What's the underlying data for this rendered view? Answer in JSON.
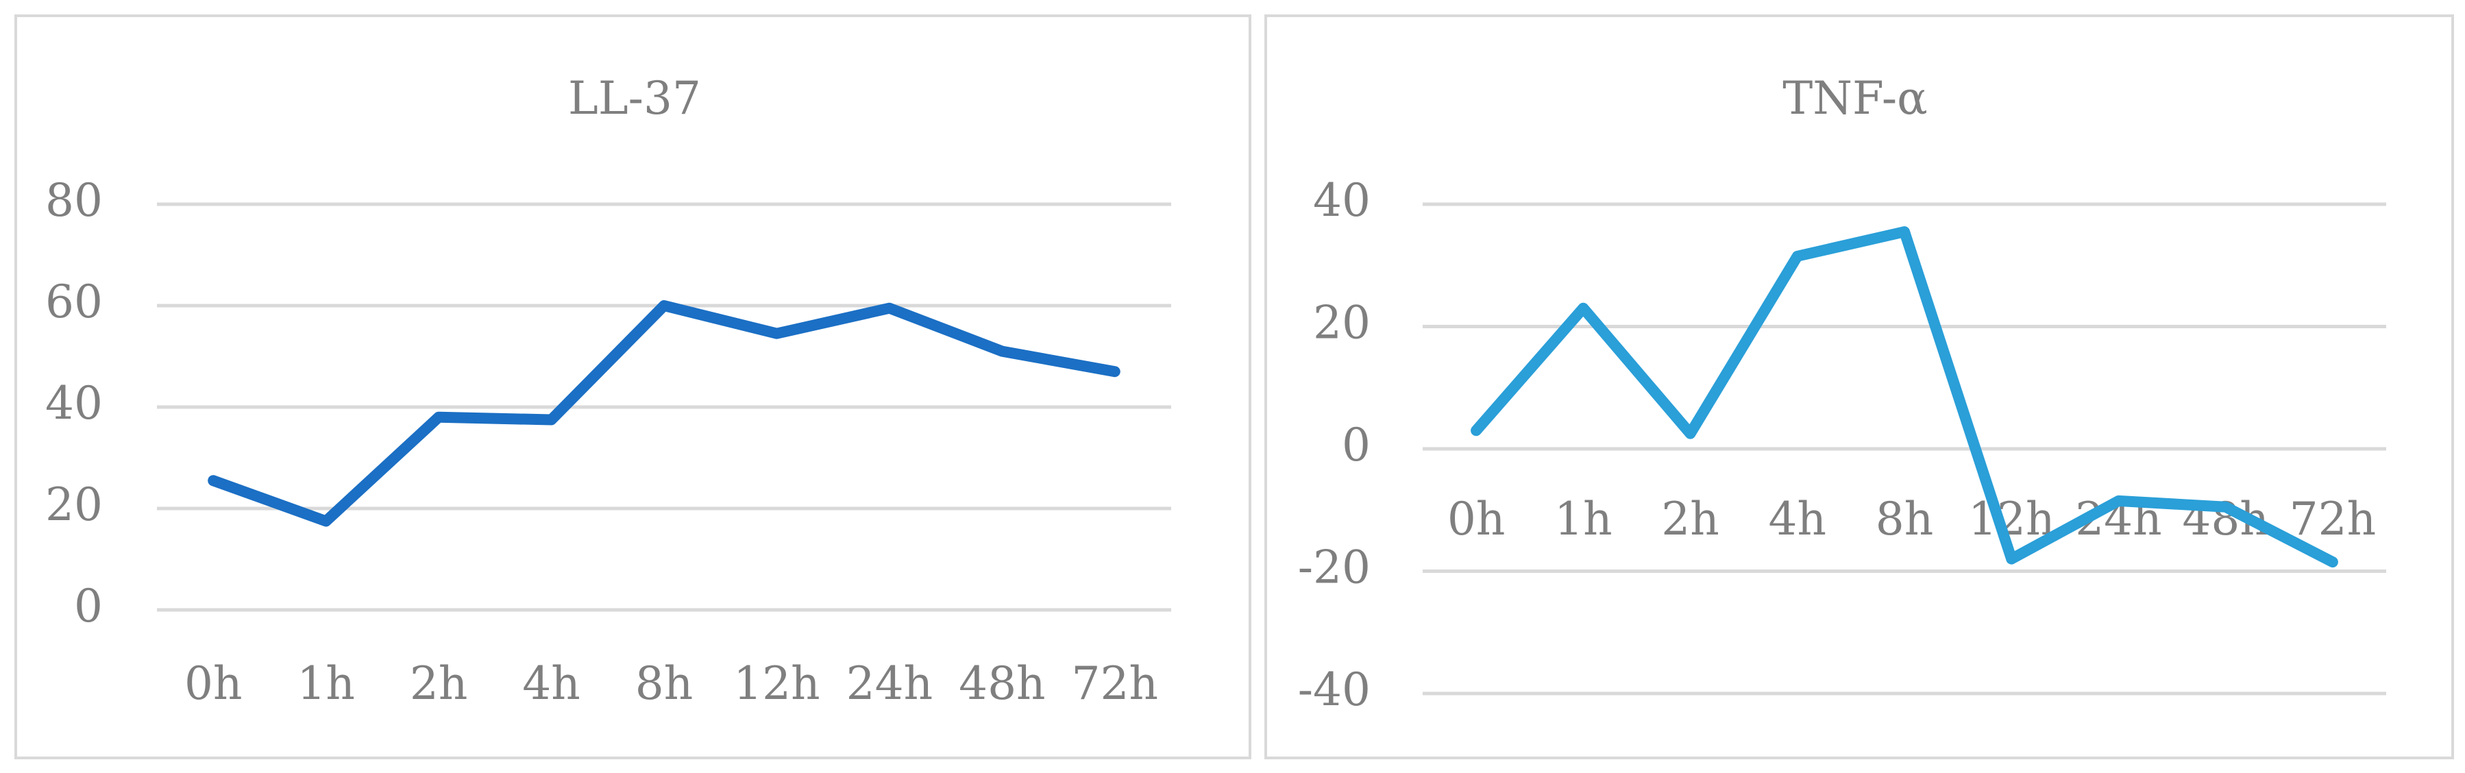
{
  "chart_data": [
    {
      "type": "line",
      "title": "LL-37",
      "categories": [
        "0h",
        "1h",
        "2h",
        "4h",
        "8h",
        "12h",
        "24h",
        "48h",
        "72h"
      ],
      "series": [
        {
          "color": "#1b6fc4",
          "values": [
            25.5,
            17.5,
            38,
            37.5,
            60,
            54.5,
            59.5,
            51,
            47
          ]
        }
      ],
      "ylim": [
        0,
        80
      ],
      "yticks": [
        0,
        20,
        40,
        60,
        80
      ],
      "grid": true
    },
    {
      "type": "line",
      "title": "TNF-α",
      "categories": [
        "0h",
        "1h",
        "2h",
        "4h",
        "8h",
        "12h",
        "24h",
        "48h",
        "72h"
      ],
      "series": [
        {
          "color": "#2a9fd8",
          "values": [
            3,
            23,
            2.5,
            31.5,
            35.5,
            -18,
            -8.5,
            -9.5,
            -18.5
          ]
        }
      ],
      "ylim": [
        -40,
        40
      ],
      "yticks": [
        -40,
        -20,
        0,
        20,
        40
      ],
      "grid": true
    }
  ]
}
